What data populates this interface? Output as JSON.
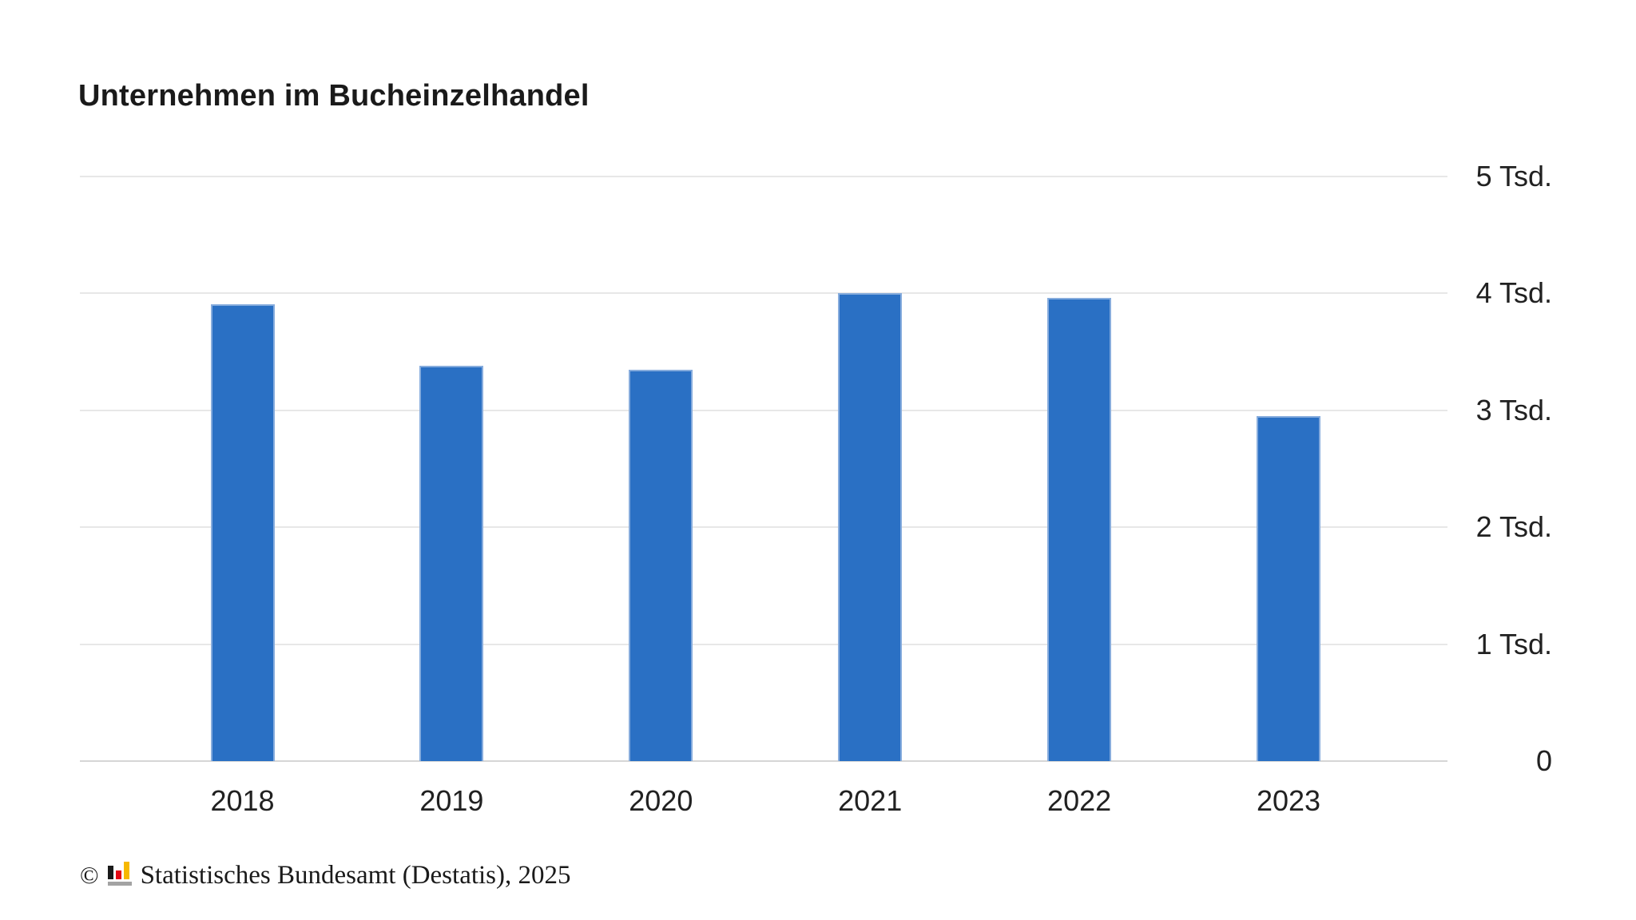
{
  "header": {
    "title": "Unternehmen im Bucheinzelhandel"
  },
  "chart_data": {
    "type": "bar",
    "title": "Unternehmen im Bucheinzelhandel",
    "categories": [
      "2018",
      "2019",
      "2020",
      "2021",
      "2022",
      "2023"
    ],
    "values": [
      3910,
      3380,
      3350,
      4000,
      3960,
      2950
    ],
    "unit": "Tsd.",
    "ylabel": "",
    "xlabel": "",
    "ylim": [
      0,
      5000
    ],
    "y_ticks": [
      {
        "value": 5000,
        "label": "5 Tsd."
      },
      {
        "value": 4000,
        "label": "4 Tsd."
      },
      {
        "value": 3000,
        "label": "3 Tsd."
      },
      {
        "value": 2000,
        "label": "2 Tsd."
      },
      {
        "value": 1000,
        "label": "1 Tsd."
      },
      {
        "value": 0,
        "label": "0"
      }
    ],
    "grid": true,
    "legend": false,
    "y_axis_side": "right",
    "bar_color": "#2a70c4",
    "bar_border_color": "#86acdd",
    "gridline_color": "#e7e7e7",
    "axis_line_color": "#d6d6d6",
    "text_color": "#212121"
  },
  "footer": {
    "copyright_symbol": "©",
    "source": "Statistisches Bundesamt (Destatis), 2025",
    "logo_colors": {
      "black": "#1a1a1a",
      "red": "#e30613",
      "yellow": "#f6b800",
      "gray": "#a3a3a3"
    }
  }
}
